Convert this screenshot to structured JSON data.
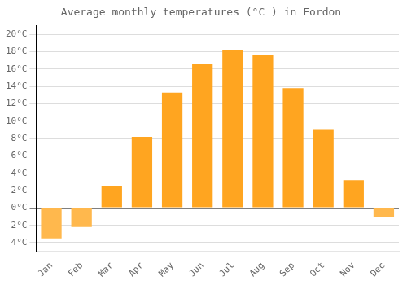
{
  "chart_data": {
    "type": "bar",
    "title": "Average monthly temperatures (°C ) in Fordon",
    "categories": [
      "Jan",
      "Feb",
      "Mar",
      "Apr",
      "May",
      "Jun",
      "Jul",
      "Aug",
      "Sep",
      "Oct",
      "Nov",
      "Dec"
    ],
    "values": [
      -3.5,
      -2.2,
      2.5,
      8.2,
      13.3,
      16.6,
      18.2,
      17.6,
      13.8,
      9.0,
      3.2,
      -1.1
    ],
    "colors": [
      "#FFB84D",
      "#FFB84D",
      "#FFA520",
      "#FFA520",
      "#FFA520",
      "#FFA520",
      "#FFA520",
      "#FFA520",
      "#FFA520",
      "#FFA520",
      "#FFA520",
      "#FFB84D"
    ],
    "ylim": [
      -5,
      21
    ],
    "yticks": [
      {
        "value": -4,
        "label": "-4°C"
      },
      {
        "value": -2,
        "label": "-2°C"
      },
      {
        "value": 0,
        "label": "0°C"
      },
      {
        "value": 2,
        "label": "2°C"
      },
      {
        "value": 4,
        "label": "4°C"
      },
      {
        "value": 6,
        "label": "6°C"
      },
      {
        "value": 8,
        "label": "8°C"
      },
      {
        "value": 10,
        "label": "10°C"
      },
      {
        "value": 12,
        "label": "12°C"
      },
      {
        "value": 14,
        "label": "14°C"
      },
      {
        "value": 16,
        "label": "16°C"
      },
      {
        "value": 18,
        "label": "18°C"
      },
      {
        "value": 20,
        "label": "20°C"
      }
    ],
    "grid": true
  }
}
